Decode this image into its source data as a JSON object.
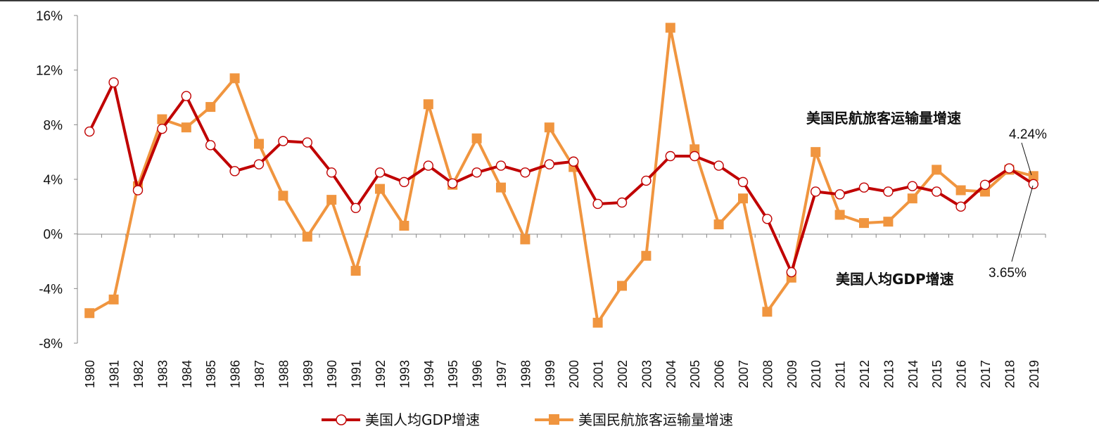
{
  "chart_data": {
    "type": "line",
    "title": "",
    "xlabel": "",
    "ylabel": "",
    "ylim": [
      -8,
      16
    ],
    "y_ticks": [
      "16%",
      "12%",
      "8%",
      "4%",
      "0%",
      "-4%",
      "-8%"
    ],
    "x": [
      "1980",
      "1981",
      "1982",
      "1983",
      "1984",
      "1985",
      "1986",
      "1987",
      "1988",
      "1989",
      "1990",
      "1991",
      "1992",
      "1993",
      "1994",
      "1995",
      "1996",
      "1997",
      "1998",
      "1999",
      "2000",
      "2001",
      "2002",
      "2003",
      "2004",
      "2005",
      "2006",
      "2007",
      "2008",
      "2009",
      "2010",
      "2011",
      "2012",
      "2013",
      "2014",
      "2015",
      "2016",
      "2017",
      "2018",
      "2019"
    ],
    "series": [
      {
        "name": "美国人均GDP增速",
        "color": "#C00000",
        "marker": "circle-open",
        "values": [
          7.5,
          11.1,
          3.2,
          7.7,
          10.1,
          6.5,
          4.6,
          5.1,
          6.8,
          6.7,
          4.5,
          1.9,
          4.5,
          3.8,
          5.0,
          3.7,
          4.5,
          5.0,
          4.5,
          5.1,
          5.3,
          2.2,
          2.3,
          3.9,
          5.7,
          5.7,
          5.0,
          3.8,
          1.1,
          -2.8,
          3.1,
          2.9,
          3.4,
          3.1,
          3.5,
          3.1,
          2.0,
          3.6,
          4.8,
          3.65
        ]
      },
      {
        "name": "美国民航旅客运输量增速",
        "color": "#F0953F",
        "marker": "square",
        "values": [
          -5.8,
          -4.8,
          3.5,
          8.4,
          7.8,
          9.3,
          11.4,
          6.6,
          2.8,
          -0.2,
          2.5,
          -2.7,
          3.3,
          0.6,
          9.5,
          3.6,
          7.0,
          3.4,
          -0.4,
          7.8,
          4.9,
          -6.5,
          -3.8,
          -1.6,
          15.1,
          6.2,
          0.7,
          2.6,
          -5.7,
          -3.2,
          6.0,
          1.4,
          0.8,
          0.9,
          2.6,
          4.7,
          3.2,
          3.1,
          4.7,
          4.24
        ]
      }
    ],
    "annotations": {
      "passenger_label": "美国民航旅客运输量增速",
      "gdp_label": "美国人均GDP增速",
      "passenger_last_value": "4.24%",
      "gdp_last_value": "3.65%"
    },
    "legend": {
      "position": "bottom",
      "items": [
        "美国人均GDP增速",
        "美国民航旅客运输量增速"
      ]
    },
    "grid": false
  }
}
